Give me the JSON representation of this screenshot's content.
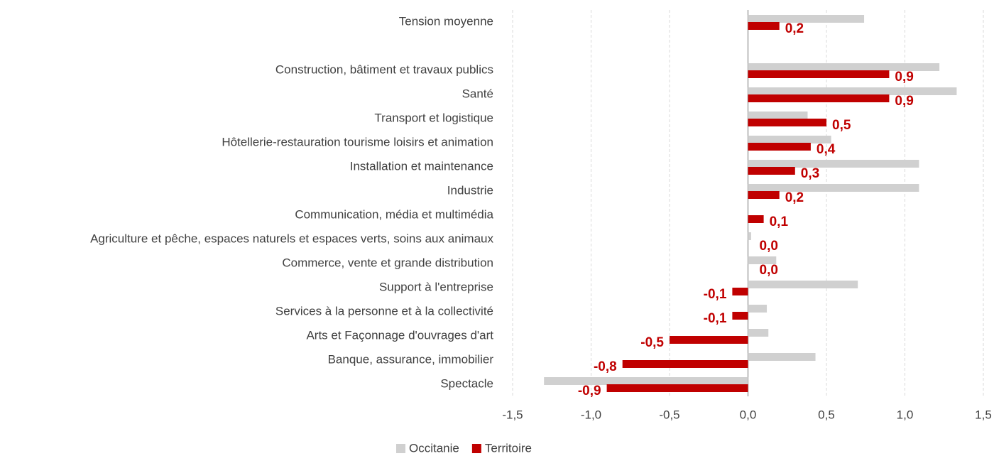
{
  "chart_data": {
    "type": "bar",
    "orientation": "horizontal",
    "categories": [
      "Tension moyenne",
      null,
      "Construction, bâtiment et travaux publics",
      "Santé",
      "Transport et logistique",
      "Hôtellerie-restauration tourisme loisirs et animation",
      "Installation et maintenance",
      "Industrie",
      "Communication, média et multimédia",
      "Agriculture et pêche, espaces naturels et espaces verts, soins aux animaux",
      "Commerce, vente et grande distribution",
      "Support à l'entreprise",
      "Services à la personne et à la collectivité",
      "Arts et Façonnage d'ouvrages d'art",
      "Banque, assurance, immobilier",
      "Spectacle"
    ],
    "series": [
      {
        "name": "Occitanie",
        "color": "#d0d0d0",
        "values": [
          0.74,
          null,
          1.22,
          1.33,
          0.38,
          0.53,
          1.09,
          1.09,
          0.0,
          0.02,
          0.18,
          0.7,
          0.12,
          0.13,
          0.43,
          -1.3
        ]
      },
      {
        "name": "Territoire",
        "color": "#c00000",
        "values": [
          0.2,
          null,
          0.9,
          0.9,
          0.5,
          0.4,
          0.3,
          0.2,
          0.1,
          0.0,
          0.0,
          -0.1,
          -0.1,
          -0.5,
          -0.8,
          -0.9
        ],
        "value_labels": [
          "0,2",
          null,
          "0,9",
          "0,9",
          "0,5",
          "0,4",
          "0,3",
          "0,2",
          "0,1",
          "0,0",
          "0,0",
          "-0,1",
          "-0,1",
          "-0,5",
          "-0,8",
          "-0,9"
        ]
      }
    ],
    "xlim": [
      -1.5,
      1.5
    ],
    "xticks": [
      {
        "value": -1.5,
        "label": "-1,5"
      },
      {
        "value": -1.0,
        "label": "-1,0"
      },
      {
        "value": -0.5,
        "label": "-0,5"
      },
      {
        "value": 0,
        "label": "0,0"
      },
      {
        "value": 0.5,
        "label": "0,5"
      },
      {
        "value": 1.0,
        "label": "1,0"
      },
      {
        "value": 1.5,
        "label": "1,5"
      }
    ],
    "grid": true,
    "legend": "bottom"
  }
}
